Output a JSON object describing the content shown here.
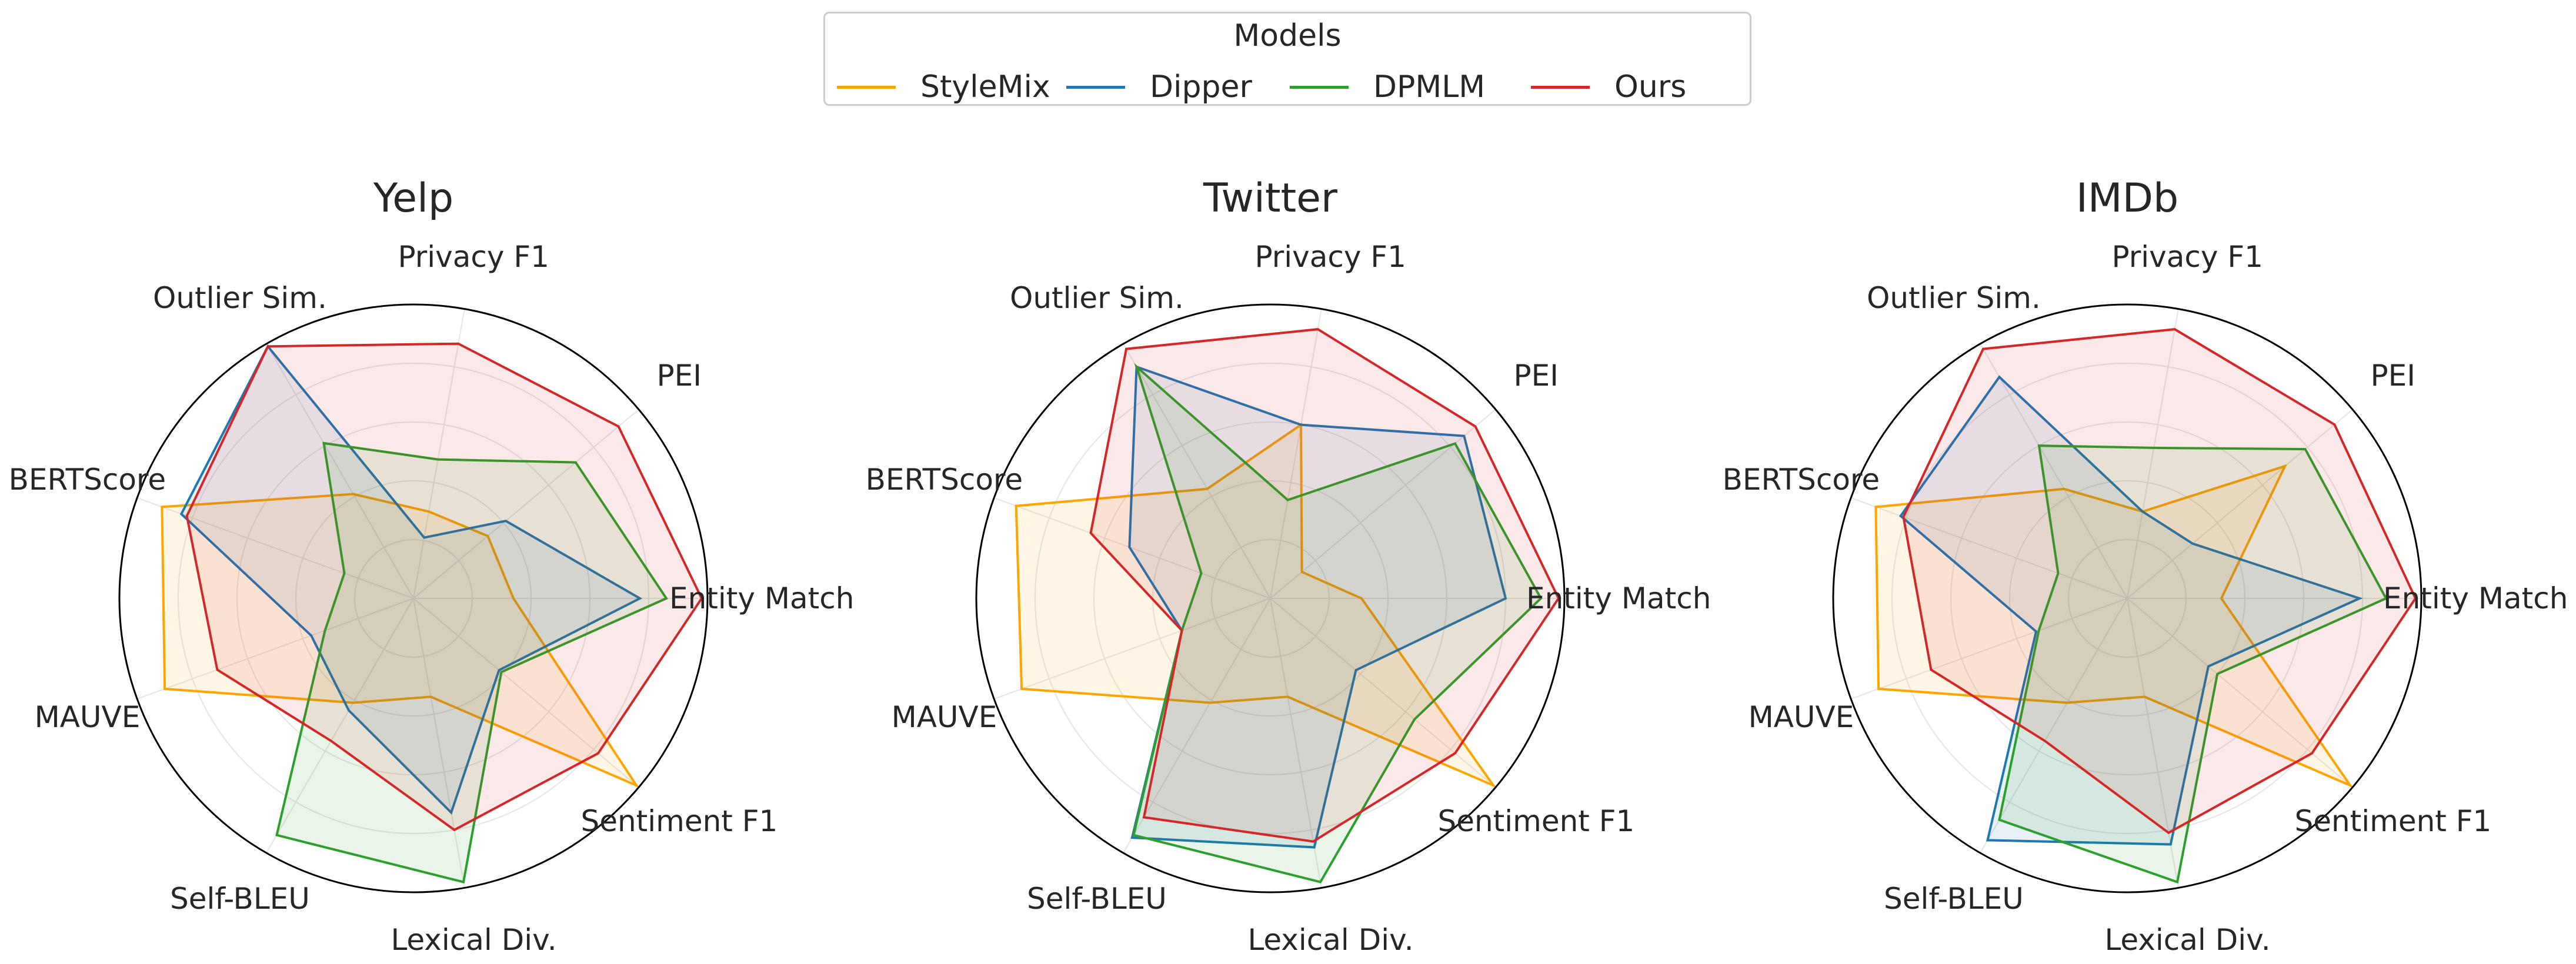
{
  "legend": {
    "title": "Models",
    "items": [
      {
        "label": "StyleMix",
        "color": "#ffa500"
      },
      {
        "label": "Dipper",
        "color": "#1f77b4"
      },
      {
        "label": "DPMLM",
        "color": "#2ca02c"
      },
      {
        "label": "Ours",
        "color": "#d62728"
      }
    ]
  },
  "chart_data": [
    {
      "type": "radar",
      "title": "Yelp",
      "axes": [
        "Entity Match",
        "PEI",
        "Privacy F1",
        "Outlier Sim.",
        "BERTScore",
        "MAUVE",
        "Self-BLEU",
        "Lexical Div.",
        "Sentiment F1"
      ],
      "rlim": [
        0,
        1
      ],
      "grid": true,
      "series": [
        {
          "name": "StyleMix",
          "values": [
            0.34,
            0.33,
            0.3,
            0.41,
            0.91,
            0.9,
            0.41,
            0.34,
            0.99
          ]
        },
        {
          "name": "Dipper",
          "values": [
            0.77,
            0.41,
            0.21,
            0.99,
            0.84,
            0.37,
            0.44,
            0.74,
            0.38
          ]
        },
        {
          "name": "DPMLM",
          "values": [
            0.86,
            0.72,
            0.48,
            0.61,
            0.25,
            0.32,
            0.93,
            0.98,
            0.39
          ]
        },
        {
          "name": "Ours",
          "values": [
            0.98,
            0.91,
            0.88,
            0.99,
            0.82,
            0.71,
            0.56,
            0.8,
            0.82
          ]
        }
      ]
    },
    {
      "type": "radar",
      "title": "Twitter",
      "axes": [
        "Entity Match",
        "PEI",
        "Privacy F1",
        "Outlier Sim.",
        "BERTScore",
        "MAUVE",
        "Self-BLEU",
        "Lexical Div.",
        "Sentiment F1"
      ],
      "rlim": [
        0,
        1
      ],
      "grid": true,
      "series": [
        {
          "name": "StyleMix",
          "values": [
            0.31,
            0.14,
            0.6,
            0.43,
            0.92,
            0.9,
            0.41,
            0.34,
            0.99
          ]
        },
        {
          "name": "Dipper",
          "values": [
            0.8,
            0.86,
            0.6,
            0.91,
            0.51,
            0.32,
            0.94,
            0.86,
            0.38
          ]
        },
        {
          "name": "DPMLM",
          "values": [
            0.92,
            0.82,
            0.34,
            0.91,
            0.25,
            0.32,
            0.93,
            0.98,
            0.64
          ]
        },
        {
          "name": "Ours",
          "values": [
            0.98,
            0.91,
            0.93,
            0.98,
            0.65,
            0.32,
            0.86,
            0.84,
            0.82
          ]
        }
      ]
    },
    {
      "type": "radar",
      "title": "IMDb",
      "axes": [
        "Entity Match",
        "PEI",
        "Privacy F1",
        "Outlier Sim.",
        "BERTScore",
        "MAUVE",
        "Self-BLEU",
        "Lexical Div.",
        "Sentiment F1"
      ],
      "rlim": [
        0,
        1
      ],
      "grid": true,
      "series": [
        {
          "name": "StyleMix",
          "values": [
            0.32,
            0.7,
            0.3,
            0.43,
            0.91,
            0.9,
            0.41,
            0.34,
            0.99
          ]
        },
        {
          "name": "Dipper",
          "values": [
            0.79,
            0.29,
            0.3,
            0.87,
            0.82,
            0.33,
            0.95,
            0.85,
            0.36
          ]
        },
        {
          "name": "DPMLM",
          "values": [
            0.88,
            0.79,
            0.52,
            0.6,
            0.25,
            0.32,
            0.87,
            0.98,
            0.4
          ]
        },
        {
          "name": "Ours",
          "values": [
            0.98,
            0.92,
            0.93,
            0.98,
            0.81,
            0.71,
            0.56,
            0.81,
            0.82
          ]
        }
      ]
    }
  ]
}
